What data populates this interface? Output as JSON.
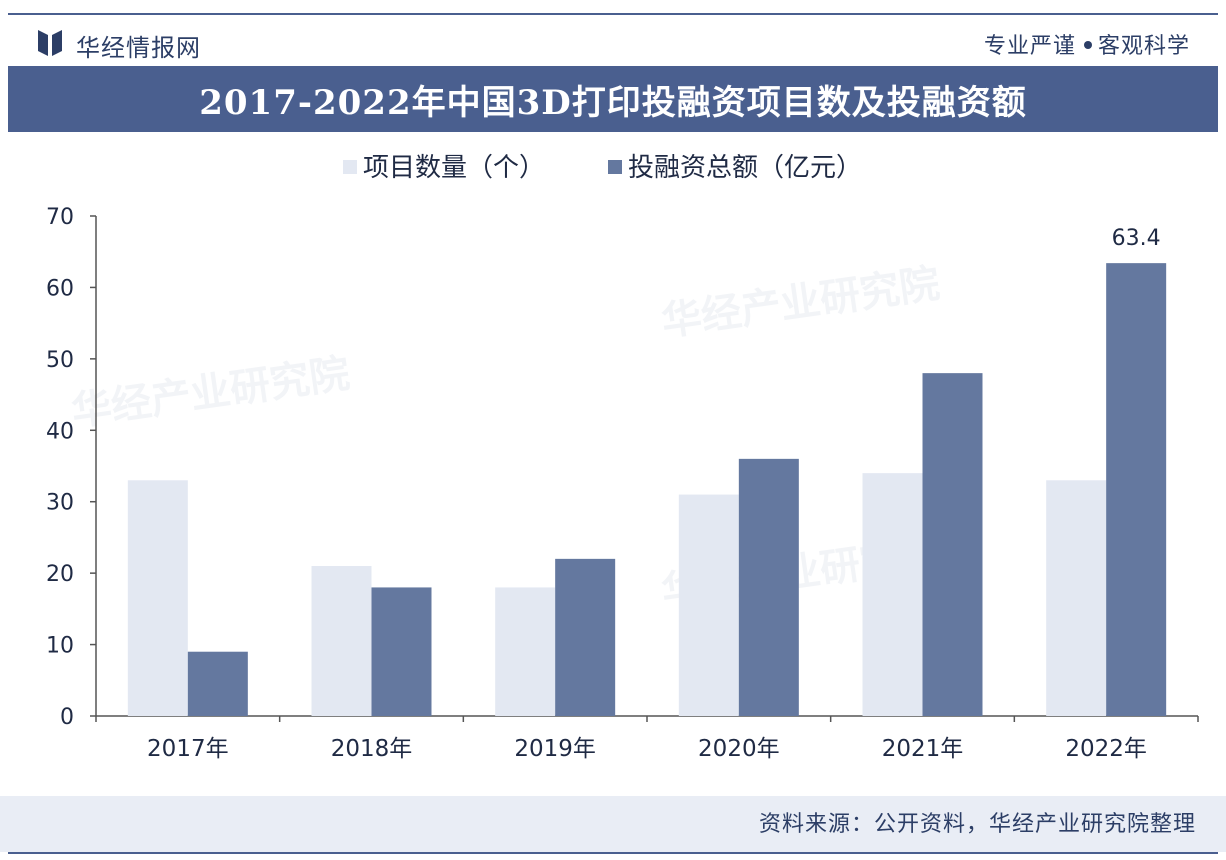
{
  "header": {
    "brand": "华经情报网",
    "slogan_left": "专业严谨",
    "slogan_right": "客观科学"
  },
  "title": "2017-2022年中国3D打印投融资项目数及投融资额",
  "colors": {
    "accent": "#4a5f8f",
    "series_light": "#e3e8f2",
    "series_dark": "#64789f"
  },
  "chart_data": {
    "type": "bar",
    "categories": [
      "2017年",
      "2018年",
      "2019年",
      "2020年",
      "2021年",
      "2022年"
    ],
    "series": [
      {
        "name": "项目数量（个）",
        "values": [
          33,
          21,
          18,
          31,
          34,
          33
        ],
        "color": "#e3e8f2"
      },
      {
        "name": "投融资总额（亿元）",
        "values": [
          9,
          18,
          22,
          36,
          48,
          63.4
        ],
        "color": "#64789f"
      }
    ],
    "ylim": [
      0,
      70
    ],
    "yticks": [
      0,
      10,
      20,
      30,
      40,
      50,
      60,
      70
    ],
    "annotations": [
      {
        "series": 1,
        "index": 5,
        "text": "63.4"
      }
    ],
    "legend": "top",
    "grid": false
  },
  "footer": {
    "source": "资料来源：公开资料，华经产业研究院整理"
  },
  "watermark": "华经产业研究院"
}
